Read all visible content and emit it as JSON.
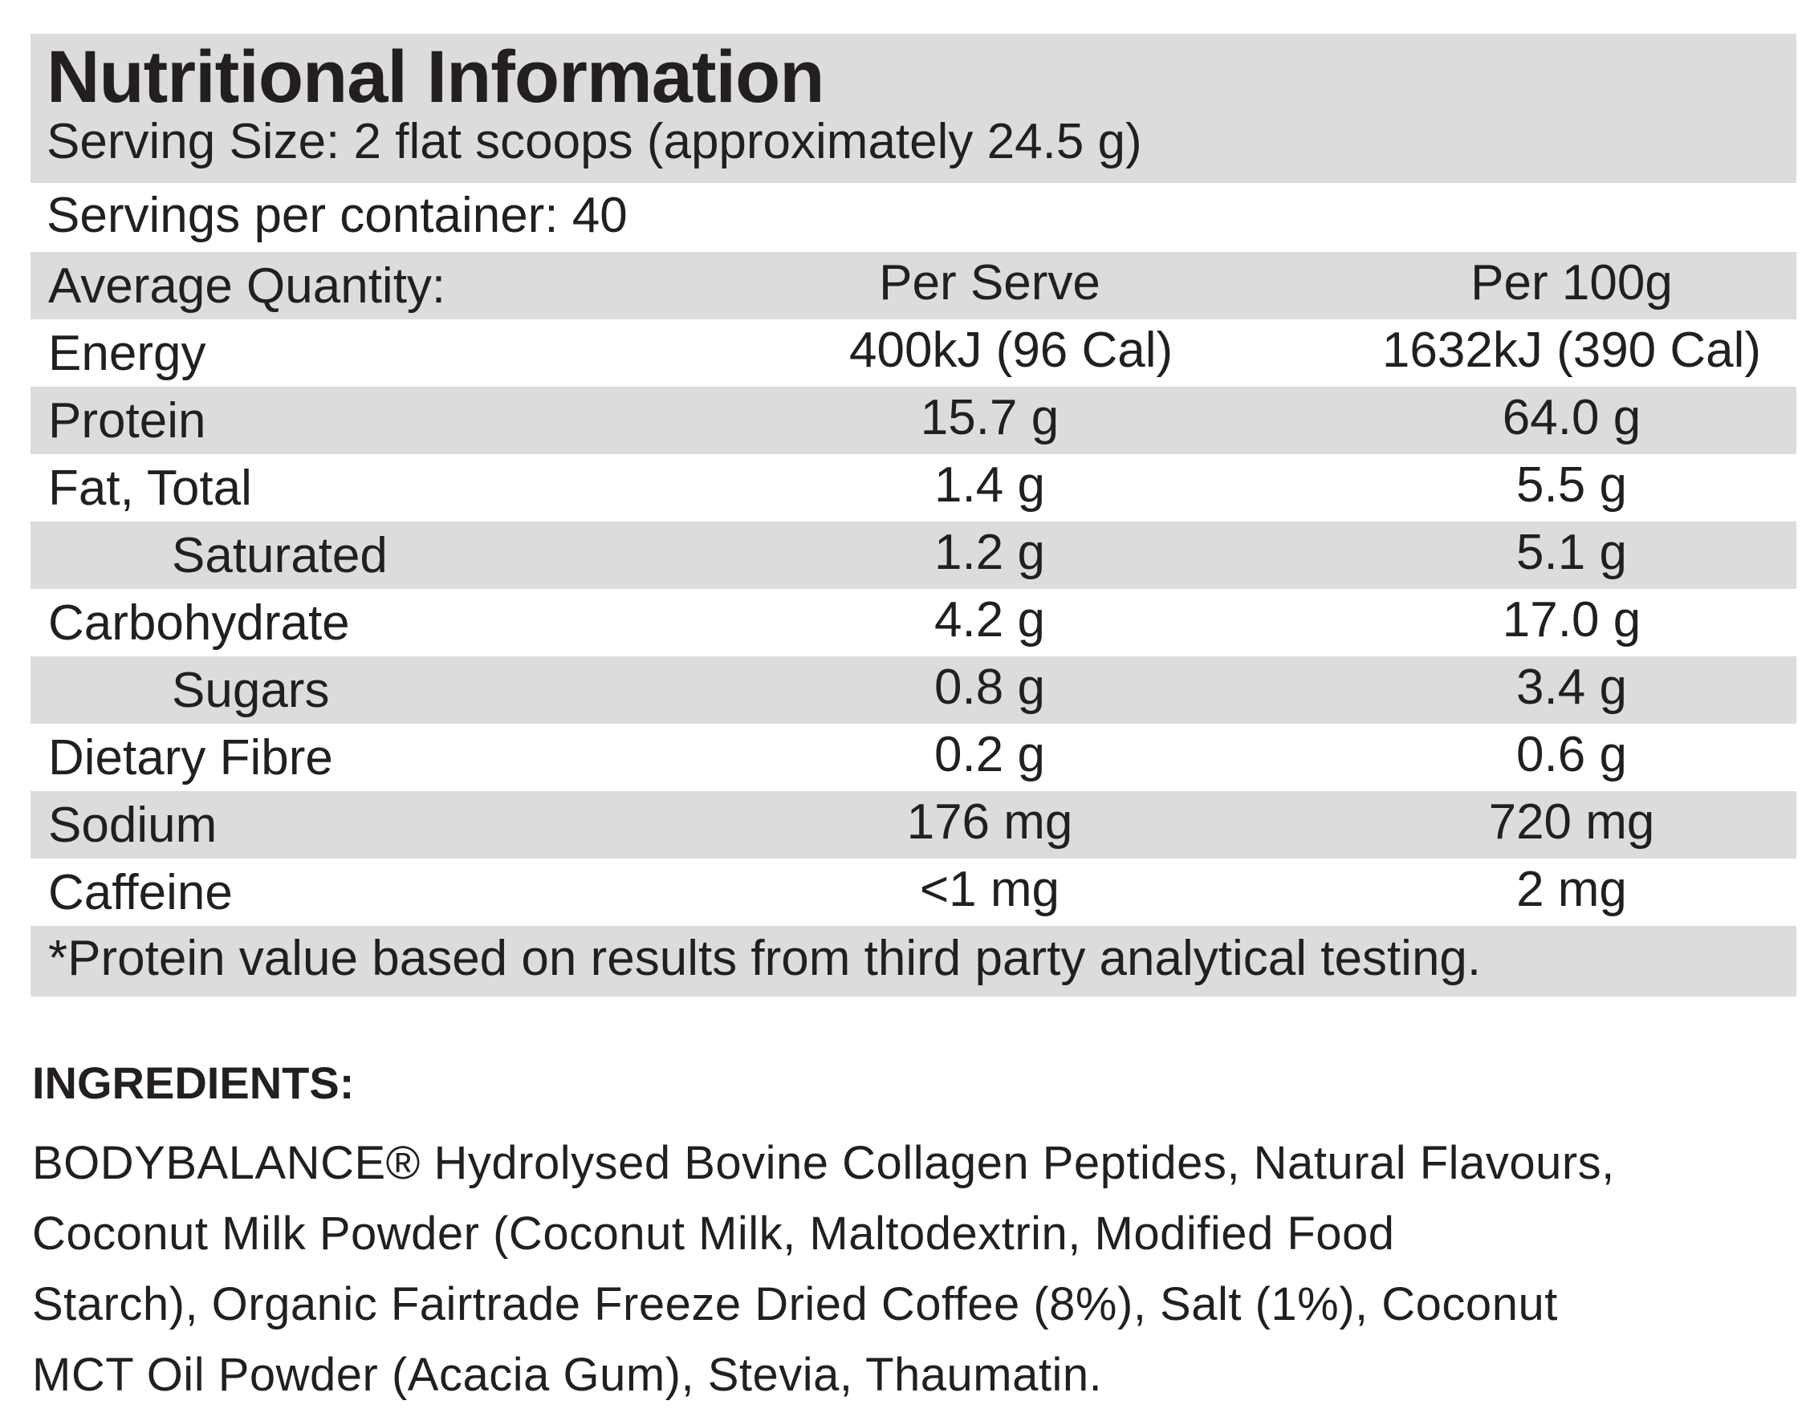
{
  "nutrition": {
    "title": "Nutritional Information",
    "serving_size": "Serving Size: 2 flat scoops (approximately 24.5 g)",
    "servings_per_container": "Servings per container: 40",
    "columns": {
      "name": "Average Quantity:",
      "per_serve": "Per Serve",
      "per_100g": "Per 100g"
    },
    "rows": [
      {
        "name": "Energy",
        "per_serve": "400kJ (96 Cal)",
        "per_100g": "1632kJ (390 Cal)"
      },
      {
        "name": "Protein",
        "per_serve": "15.7 g",
        "per_100g": "64.0 g"
      },
      {
        "name": "Fat, Total",
        "per_serve": "1.4 g",
        "per_100g": "5.5 g"
      },
      {
        "name": "Saturated",
        "per_serve": "1.2 g",
        "per_100g": "5.1 g"
      },
      {
        "name": "Carbohydrate",
        "per_serve": "4.2 g",
        "per_100g": "17.0 g"
      },
      {
        "name": "Sugars",
        "per_serve": "0.8 g",
        "per_100g": "3.4 g"
      },
      {
        "name": "Dietary Fibre",
        "per_serve": "0.2 g",
        "per_100g": "0.6 g"
      },
      {
        "name": "Sodium",
        "per_serve": "176 mg",
        "per_100g": "720 mg"
      },
      {
        "name": "Caffeine",
        "per_serve": "<1 mg",
        "per_100g": "2 mg"
      }
    ],
    "footnote": "*Protein value based on results from third party analytical testing."
  },
  "ingredients": {
    "title": "INGREDIENTS:",
    "lines": [
      "BODYBALANCE® Hydrolysed Bovine Collagen Peptides, Natural Flavours,",
      "Coconut Milk Powder (Coconut Milk, Maltodextrin, Modified Food",
      "Starch), Organic Fairtrade Freeze Dried Coffee (8%), Salt (1%), Coconut",
      "MCT Oil Powder (Acacia Gum), Stevia, Thaumatin."
    ]
  },
  "colors": {
    "shade": "#dcdcdc",
    "text": "#231f20"
  }
}
